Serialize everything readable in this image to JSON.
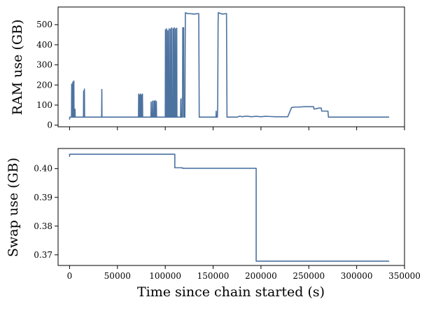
{
  "chart_data": [
    {
      "type": "line",
      "title": "",
      "xlabel": "",
      "ylabel": "RAM use (GB)",
      "xlim": [
        -12000,
        350000
      ],
      "ylim": [
        -8,
        588
      ],
      "xticks": [
        0,
        50000,
        100000,
        150000,
        200000,
        250000,
        300000,
        350000
      ],
      "yticks": [
        0,
        100,
        200,
        300,
        400,
        500
      ],
      "ytick_labels": [
        "0",
        "100",
        "200",
        "300",
        "400",
        "500"
      ],
      "grid": false,
      "color": "#4c72a0",
      "series": [
        {
          "points": [
            [
              0,
              28
            ],
            [
              200,
              40
            ],
            [
              2000,
              40
            ],
            [
              2200,
              205
            ],
            [
              2400,
              40
            ],
            [
              3200,
              40
            ],
            [
              3400,
              215
            ],
            [
              3600,
              40
            ],
            [
              4300,
              40
            ],
            [
              4500,
              220
            ],
            [
              4700,
              40
            ],
            [
              5500,
              40
            ],
            [
              5700,
              80
            ],
            [
              5900,
              40
            ],
            [
              14500,
              40
            ],
            [
              14700,
              170
            ],
            [
              14900,
              40
            ],
            [
              15300,
              40
            ],
            [
              15500,
              180
            ],
            [
              15700,
              40
            ],
            [
              33500,
              40
            ],
            [
              33700,
              178
            ],
            [
              33900,
              40
            ],
            [
              72000,
              40
            ],
            [
              72200,
              155
            ],
            [
              72400,
              40
            ],
            [
              73000,
              40
            ],
            [
              73200,
              150
            ],
            [
              73400,
              40
            ],
            [
              74000,
              40
            ],
            [
              74200,
              155
            ],
            [
              74400,
              40
            ],
            [
              75000,
              40
            ],
            [
              75200,
              150
            ],
            [
              75400,
              40
            ],
            [
              76000,
              40
            ],
            [
              76200,
              155
            ],
            [
              76400,
              40
            ],
            [
              85000,
              40
            ],
            [
              85200,
              115
            ],
            [
              85400,
              40
            ],
            [
              86500,
              40
            ],
            [
              86700,
              120
            ],
            [
              86900,
              40
            ],
            [
              88000,
              40
            ],
            [
              88200,
              120
            ],
            [
              88400,
              40
            ],
            [
              89200,
              40
            ],
            [
              89400,
              122
            ],
            [
              89600,
              40
            ],
            [
              90500,
              40
            ],
            [
              90700,
              118
            ],
            [
              90900,
              40
            ],
            [
              100000,
              40
            ],
            [
              100200,
              475
            ],
            [
              100400,
              40
            ],
            [
              101200,
              40
            ],
            [
              101400,
              480
            ],
            [
              101600,
              40
            ],
            [
              102500,
              40
            ],
            [
              102700,
              470
            ],
            [
              102900,
              40
            ],
            [
              103800,
              40
            ],
            [
              104000,
              480
            ],
            [
              104200,
              40
            ],
            [
              105200,
              40
            ],
            [
              105400,
              478
            ],
            [
              105600,
              40
            ],
            [
              106500,
              40
            ],
            [
              106700,
              485
            ],
            [
              106900,
              40
            ],
            [
              108000,
              40
            ],
            [
              108200,
              480
            ],
            [
              108400,
              40
            ],
            [
              109200,
              40
            ],
            [
              109400,
              485
            ],
            [
              109600,
              40
            ],
            [
              110500,
              40
            ],
            [
              110700,
              480
            ],
            [
              110900,
              40
            ],
            [
              111800,
              40
            ],
            [
              112000,
              483
            ],
            [
              112200,
              40
            ],
            [
              116000,
              40
            ],
            [
              116200,
              130
            ],
            [
              116400,
              40
            ],
            [
              117500,
              40
            ],
            [
              117700,
              135
            ],
            [
              117900,
              40
            ],
            [
              118000,
              40
            ],
            [
              118300,
              485
            ],
            [
              119200,
              485
            ],
            [
              119400,
              40
            ],
            [
              120500,
              40
            ],
            [
              121000,
              560
            ],
            [
              123000,
              555
            ],
            [
              126000,
              555
            ],
            [
              130000,
              553
            ],
            [
              134000,
              555
            ],
            [
              135000,
              555
            ],
            [
              135500,
              40
            ],
            [
              153000,
              40
            ],
            [
              153200,
              70
            ],
            [
              153400,
              40
            ],
            [
              154500,
              40
            ],
            [
              154800,
              100
            ],
            [
              155000,
              300
            ],
            [
              155200,
              500
            ],
            [
              155400,
              560
            ],
            [
              158000,
              555
            ],
            [
              160000,
              553
            ],
            [
              163000,
              555
            ],
            [
              164000,
              555
            ],
            [
              164500,
              40
            ],
            [
              175000,
              40
            ],
            [
              178000,
              45
            ],
            [
              180000,
              42
            ],
            [
              185000,
              45
            ],
            [
              190000,
              42
            ],
            [
              195000,
              44
            ],
            [
              200000,
              42
            ],
            [
              205000,
              44
            ],
            [
              210000,
              43
            ],
            [
              215000,
              42
            ],
            [
              228000,
              42
            ],
            [
              232000,
              88
            ],
            [
              235000,
              90
            ],
            [
              240000,
              90
            ],
            [
              245000,
              92
            ],
            [
              250000,
              92
            ],
            [
              255000,
              92
            ],
            [
              255500,
              80
            ],
            [
              258000,
              82
            ],
            [
              260000,
              85
            ],
            [
              263000,
              85
            ],
            [
              263500,
              70
            ],
            [
              270000,
              70
            ],
            [
              270500,
              40
            ],
            [
              300000,
              40
            ],
            [
              334000,
              40
            ]
          ]
        }
      ]
    },
    {
      "type": "line",
      "title": "",
      "xlabel": "Time since chain started (s)",
      "ylabel": "Swap use (GB)",
      "xlim": [
        -12000,
        350000
      ],
      "ylim": [
        0.3663,
        0.407
      ],
      "xticks": [
        0,
        50000,
        100000,
        150000,
        200000,
        250000,
        300000,
        350000
      ],
      "xtick_labels": [
        "0",
        "50000",
        "100000",
        "150000",
        "200000",
        "250000",
        "300000",
        "350000"
      ],
      "yticks": [
        0.37,
        0.38,
        0.39,
        0.4
      ],
      "ytick_labels": [
        "0.37",
        "0.38",
        "0.39",
        "0.40"
      ],
      "grid": false,
      "color": "#4c72a0",
      "series": [
        {
          "points": [
            [
              0,
              0.4041
            ],
            [
              0,
              0.405
            ],
            [
              110000,
              0.405
            ],
            [
              110000,
              0.4003
            ],
            [
              118000,
              0.4003
            ],
            [
              118000,
              0.4001
            ],
            [
              195000,
              0.4001
            ],
            [
              195000,
              0.3678
            ],
            [
              334000,
              0.3678
            ]
          ]
        }
      ]
    }
  ]
}
